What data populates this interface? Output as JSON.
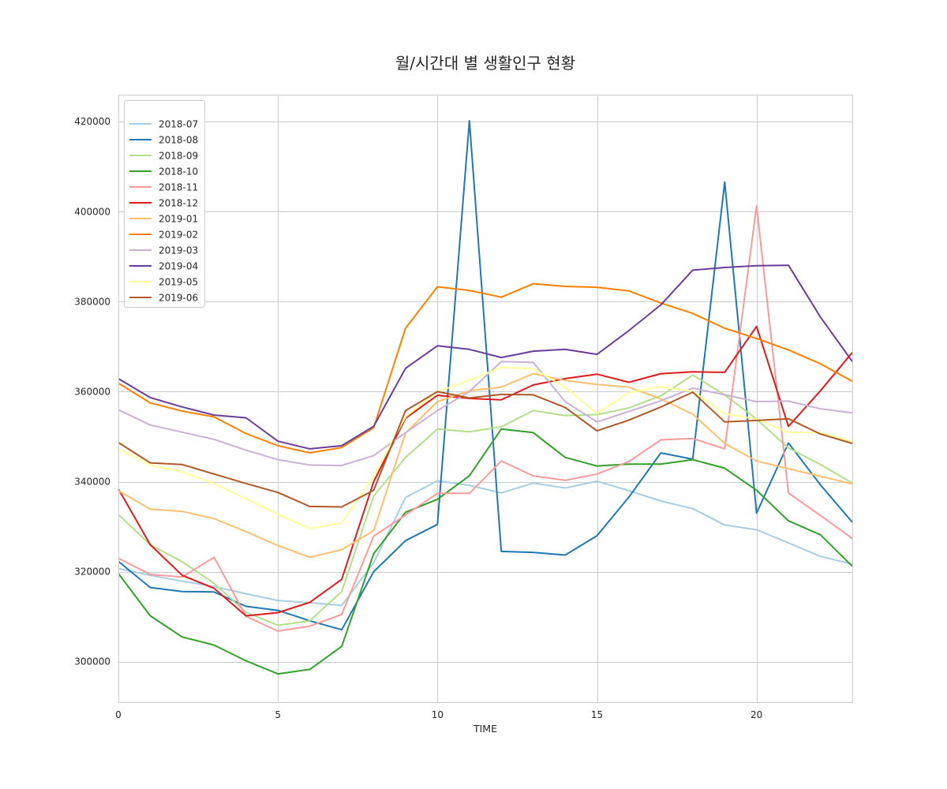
{
  "chart_data": {
    "type": "line",
    "title": "월/시간대 별 생활인구 현황",
    "xlabel": "TIME",
    "ylabel": "",
    "xlim": [
      0,
      23
    ],
    "ylim": [
      291000,
      426000
    ],
    "xticks": [
      0,
      5,
      10,
      15,
      20
    ],
    "yticks": [
      300000,
      320000,
      340000,
      360000,
      380000,
      400000,
      420000
    ],
    "grid": true,
    "legend_position": "top-left",
    "x": [
      0,
      1,
      2,
      3,
      4,
      5,
      6,
      7,
      8,
      9,
      10,
      11,
      12,
      13,
      14,
      15,
      16,
      17,
      18,
      19,
      20,
      21,
      22,
      23
    ],
    "series": [
      {
        "name": "2018-07",
        "color": "#a6cee3",
        "values": [
          320700,
          319200,
          317900,
          316700,
          315100,
          313600,
          313100,
          312500,
          322000,
          336500,
          340200,
          339200,
          337500,
          339700,
          338600,
          340100,
          338000,
          335700,
          334000,
          330400,
          329300,
          326400,
          323400,
          321700
        ]
      },
      {
        "name": "2018-08",
        "color": "#1f78b4",
        "values": [
          322300,
          316500,
          315600,
          315500,
          312300,
          311400,
          309100,
          307100,
          320000,
          326900,
          330500,
          420200,
          324500,
          324300,
          323700,
          328000,
          336600,
          346400,
          345000,
          406600,
          333000,
          348600,
          339300,
          331000
        ]
      },
      {
        "name": "2018-09",
        "color": "#b2df8a",
        "values": [
          332700,
          326000,
          322200,
          317400,
          311000,
          308100,
          309100,
          315600,
          336800,
          345400,
          351700,
          351100,
          352200,
          355800,
          354700,
          354900,
          356400,
          359100,
          363700,
          359300,
          353900,
          347500,
          343800,
          339700
        ]
      },
      {
        "name": "2018-10",
        "color": "#33a02c",
        "values": [
          319600,
          310200,
          305500,
          303700,
          300200,
          297300,
          298300,
          303400,
          324000,
          333200,
          336100,
          341300,
          351700,
          350900,
          345400,
          343500,
          343900,
          343900,
          344900,
          343000,
          338100,
          331300,
          328200,
          321200
        ]
      },
      {
        "name": "2018-11",
        "color": "#fb9a99",
        "values": [
          323000,
          319400,
          318800,
          323200,
          310100,
          306800,
          307900,
          310500,
          327900,
          332600,
          337400,
          337400,
          344600,
          341300,
          340300,
          341700,
          344500,
          349300,
          349600,
          347300,
          401300,
          337500,
          332500,
          327400
        ]
      },
      {
        "name": "2018-12",
        "color": "#e31a1c",
        "values": [
          338400,
          326000,
          319200,
          316300,
          310200,
          310900,
          313200,
          318300,
          340000,
          354100,
          359200,
          358500,
          358200,
          361500,
          362900,
          363900,
          362100,
          364000,
          364400,
          364300,
          374500,
          352300,
          360200,
          368700
        ]
      },
      {
        "name": "2019-01",
        "color": "#fdbf6f",
        "values": [
          338000,
          333900,
          333400,
          331800,
          328900,
          325800,
          323200,
          324900,
          329100,
          350800,
          357800,
          360200,
          361000,
          364000,
          362500,
          361600,
          361000,
          358400,
          355000,
          348500,
          344600,
          342900,
          341200,
          339500
        ]
      },
      {
        "name": "2019-02",
        "color": "#ff7f00",
        "values": [
          361900,
          357500,
          355700,
          354400,
          350700,
          348000,
          346400,
          347600,
          352000,
          374100,
          383300,
          382500,
          381000,
          384000,
          383400,
          383200,
          382400,
          379700,
          377400,
          374100,
          371800,
          369300,
          366200,
          362300
        ]
      },
      {
        "name": "2019-03",
        "color": "#cab2d6",
        "values": [
          356000,
          352600,
          351000,
          349400,
          347000,
          344900,
          343700,
          343600,
          345800,
          350900,
          355800,
          360000,
          366700,
          366500,
          357800,
          353300,
          355600,
          358000,
          360800,
          359300,
          357800,
          357900,
          356200,
          355300
        ]
      },
      {
        "name": "2019-04",
        "color": "#6a3d9a",
        "values": [
          362900,
          358700,
          356600,
          354800,
          354200,
          349000,
          347300,
          348000,
          352300,
          365200,
          370200,
          369400,
          367600,
          369000,
          369400,
          368300,
          373600,
          379300,
          387000,
          387600,
          388000,
          388100,
          376600,
          366700
        ]
      },
      {
        "name": "2019-05",
        "color": "#ffff99",
        "values": [
          347300,
          343700,
          342200,
          339600,
          336200,
          332700,
          329600,
          330800,
          341300,
          354400,
          360000,
          362500,
          365400,
          365100,
          361000,
          355100,
          359800,
          361100,
          360100,
          355100,
          353900,
          351000,
          350900,
          348900
        ]
      },
      {
        "name": "2019-06",
        "color": "#b15928",
        "values": [
          348700,
          344200,
          343800,
          341700,
          339600,
          337600,
          334500,
          334400,
          338100,
          355800,
          360000,
          358600,
          359400,
          359300,
          356500,
          351300,
          353700,
          356600,
          359900,
          353300,
          353600,
          354000,
          350600,
          348500
        ]
      }
    ]
  }
}
